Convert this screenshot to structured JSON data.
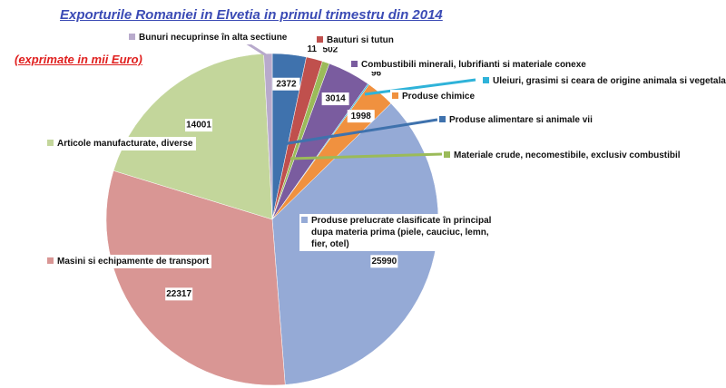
{
  "chart_data": {
    "type": "pie",
    "title": "Exporturile Romaniei in Elvetia in primul trimestru din 2014",
    "subtitle": "(exprimate in mii  Euro)",
    "categories": [
      "Produse alimentare  si animale vii",
      "Bauturi  si tutun",
      "Materiale crude, necomestibile, exclusiv combustibil",
      "Combustibili minerali, lubrifianti si materiale conexe",
      "Uleiuri, grasimi  si ceara  de origine animala  si vegetala",
      "Produse chimice",
      "Produse prelucrate clasificate în principal dupa  materia prima (piele, cauciuc, lemn, fier, otel)",
      "Masini si echipamente de transport",
      "Articole manufacturate, diverse",
      "Bunuri necuprinse în alta sectiune"
    ],
    "values": [
      2372,
      1150,
      502,
      3014,
      96,
      1998,
      25990,
      22317,
      14001,
      591
    ],
    "colors": [
      "#3f72ad",
      "#c0504d",
      "#9bbb59",
      "#7a5c9f",
      "#2fb3d9",
      "#f0913f",
      "#95aad6",
      "#d99694",
      "#c3d69b",
      "#b8aacc"
    ]
  }
}
